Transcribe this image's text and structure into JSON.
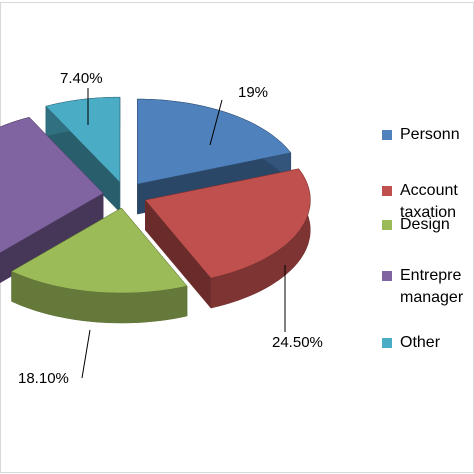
{
  "chart_data": {
    "type": "pie",
    "categories": [
      "Personn",
      "Account\ntaxation",
      "Design",
      "Entrepre\nmanager",
      "Other"
    ],
    "values": [
      19,
      24.5,
      18.1,
      31,
      7.4
    ],
    "value_labels": [
      "19%",
      "24.50%",
      "18.10%",
      null,
      "7.40%"
    ],
    "colors": [
      "#4f81bd",
      "#c0504d",
      "#9bbb59",
      "#8064a2",
      "#4bacc6"
    ],
    "legend": "right"
  }
}
